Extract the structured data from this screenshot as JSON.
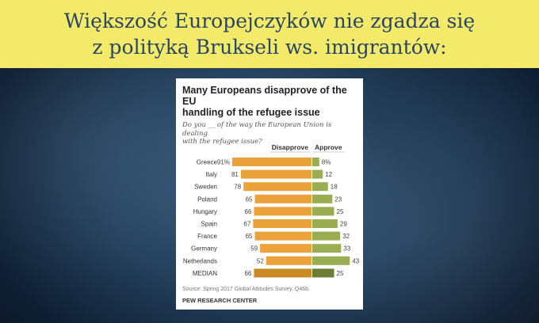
{
  "banner": {
    "line1": "Większość Europejczyków nie zgadza się",
    "line2": "z polityką Brukseli ws. imigrantów:"
  },
  "card": {
    "title_line1": "Many Europeans disapprove of the EU",
    "title_line2": "handling of the refugee issue",
    "subtitle_line1": "Do you __ of the way the European Union is dealing",
    "subtitle_line2": "with the refugee issue?",
    "source": "Source: Spring 2017 Global Attitudes Survey. Q46b.",
    "org": "PEW RESEARCH CENTER"
  },
  "chart_data": {
    "type": "bar",
    "orientation": "horizontal-diverging",
    "categories": [
      "Greece",
      "Italy",
      "Sweden",
      "Poland",
      "Hungary",
      "Spain",
      "France",
      "Germany",
      "Netherlands",
      "MEDIAN"
    ],
    "value_labels": {
      "disapprove": [
        "91%",
        "81",
        "78",
        "65",
        "66",
        "67",
        "65",
        "59",
        "52",
        "66"
      ],
      "approve": [
        "8%",
        "12",
        "18",
        "23",
        "25",
        "29",
        "32",
        "33",
        "43",
        "25"
      ]
    },
    "series": [
      {
        "name": "Disapprove",
        "values": [
          91,
          81,
          78,
          65,
          66,
          67,
          65,
          59,
          52,
          66
        ],
        "color": "#eca23a",
        "median_color": "#c98a26"
      },
      {
        "name": "Approve",
        "values": [
          8,
          12,
          18,
          23,
          25,
          29,
          32,
          33,
          43,
          25
        ],
        "color": "#9aad52",
        "median_color": "#6f7d34"
      }
    ]
  }
}
